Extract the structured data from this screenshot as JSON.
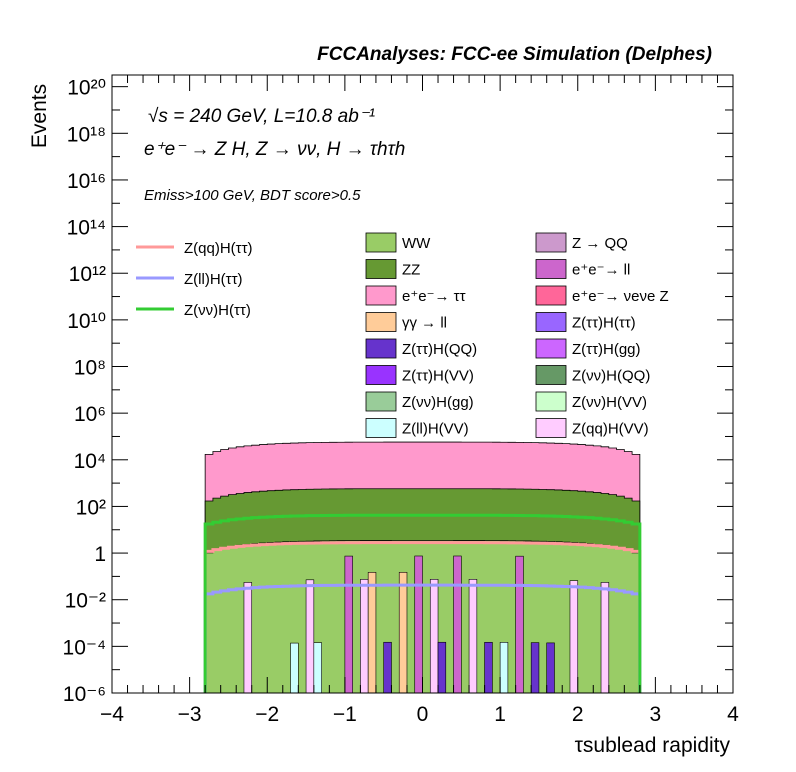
{
  "chart_data": {
    "type": "histogram",
    "title": "FCCAnalyses: FCC-ee Simulation (Delphes)",
    "annotations": {
      "energy": "√s = 240 GeV, L=10.8 ab⁻¹",
      "process": "e⁺e⁻ → Z H, Z → νν, H → τhτh",
      "selection": "Emiss>100 GeV, BDT score>0.5"
    },
    "xlabel": "τsublead rapidity",
    "ylabel": "Events",
    "xlim": [
      -4,
      4
    ],
    "ylim": [
      1e-06,
      3e+20
    ],
    "yscale": "log",
    "xticks": [
      "−4",
      "−3",
      "−2",
      "−1",
      "0",
      "1",
      "2",
      "3",
      "4"
    ],
    "yticks": [
      "10⁻⁶",
      "10⁻⁴",
      "10⁻²",
      "1",
      "10²",
      "10⁴",
      "10⁶",
      "10⁸",
      "10¹⁰",
      "10¹²",
      "10¹⁴",
      "10¹⁶",
      "10¹⁸",
      "10²⁰"
    ],
    "legend_position": "upper-middle",
    "x_range_populated": [
      -2.8,
      2.8
    ],
    "stacked_backgrounds": [
      {
        "name": "WW",
        "color": "#99cc66",
        "approx_total_level": 3
      },
      {
        "name": "Z → QQ",
        "color": "#cc99cc"
      },
      {
        "name": "ZZ",
        "color": "#669933",
        "approx_total_level": 500
      },
      {
        "name": "e⁺e⁻→ ll",
        "color": "#cc66cc"
      },
      {
        "name": "e⁺e⁻→ ττ",
        "color": "#ff99cc",
        "approx_total_level": 50000
      },
      {
        "name": "e⁺e⁻→ νeνe Z",
        "color": "#ff6699"
      },
      {
        "name": "γγ → ll",
        "color": "#ffcc99"
      },
      {
        "name": "Z(ττ)H(ττ)",
        "color": "#9966ff"
      },
      {
        "name": "Z(ττ)H(QQ)",
        "color": "#6633cc"
      },
      {
        "name": "Z(ττ)H(gg)",
        "color": "#cc66ff"
      },
      {
        "name": "Z(ττ)H(VV)",
        "color": "#9933ff"
      },
      {
        "name": "Z(νν)H(QQ)",
        "color": "#669966"
      },
      {
        "name": "Z(νν)H(gg)",
        "color": "#99cc99"
      },
      {
        "name": "Z(νν)H(VV)",
        "color": "#ccffcc"
      },
      {
        "name": "Z(ll)H(VV)",
        "color": "#ccffff"
      },
      {
        "name": "Z(qq)H(VV)",
        "color": "#ffccff"
      }
    ],
    "signals": [
      {
        "name": "Z(qq)H(ττ)",
        "color": "#ff9999",
        "approx_level": 2
      },
      {
        "name": "Z(ll)H(ττ)",
        "color": "#9999ff",
        "approx_level": 0.03
      },
      {
        "name": "Z(νν)H(ττ)",
        "color": "#33cc33",
        "approx_level": 30
      }
    ],
    "grid": false
  }
}
